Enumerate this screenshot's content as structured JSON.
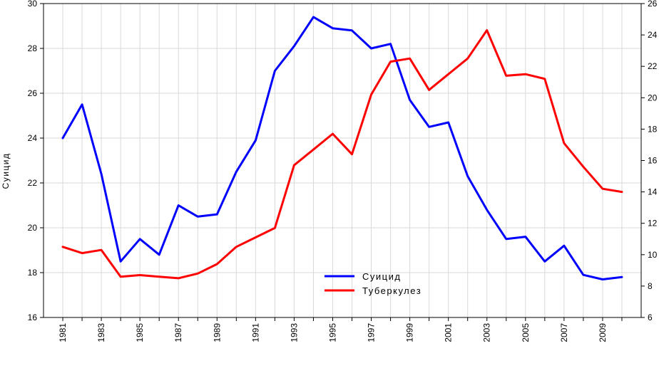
{
  "chart_data": {
    "type": "line",
    "ylabel_left": "Суицид",
    "ylabel_right": "",
    "x": [
      1981,
      1982,
      1983,
      1984,
      1985,
      1986,
      1987,
      1988,
      1989,
      1990,
      1991,
      1992,
      1993,
      1994,
      1995,
      1996,
      1997,
      1998,
      1999,
      2000,
      2001,
      2002,
      2003,
      2004,
      2005,
      2006,
      2007,
      2008,
      2009,
      2010
    ],
    "x_tick_labels": [
      "1981",
      "1983",
      "1985",
      "1987",
      "1989",
      "1991",
      "1993",
      "1995",
      "1997",
      "1999",
      "2001",
      "2003",
      "2005",
      "2007",
      "2009"
    ],
    "ylim_left": [
      16,
      30
    ],
    "yticks_left": [
      "16",
      "18",
      "20",
      "22",
      "24",
      "26",
      "28",
      "30"
    ],
    "ylim_right": [
      6,
      26
    ],
    "yticks_right": [
      "6",
      "8",
      "10",
      "12",
      "14",
      "16",
      "18",
      "20",
      "22",
      "24",
      "26"
    ],
    "grid": true,
    "legend_position": "bottom-center",
    "series": [
      {
        "name": "Суицид",
        "axis": "left",
        "color": "#0000ff",
        "values": [
          24.0,
          25.5,
          22.4,
          18.5,
          19.5,
          18.8,
          21.0,
          20.5,
          20.6,
          22.5,
          23.9,
          27.0,
          28.1,
          29.4,
          28.9,
          28.8,
          28.0,
          28.2,
          25.7,
          24.5,
          24.7,
          22.3,
          20.8,
          19.5,
          19.6,
          18.5,
          19.2,
          17.9,
          17.7,
          17.8
        ]
      },
      {
        "name": "Туберкулез",
        "axis": "right",
        "color": "#ff0000",
        "values": [
          10.5,
          10.1,
          10.3,
          8.6,
          8.7,
          8.6,
          8.5,
          8.8,
          9.4,
          10.5,
          11.1,
          11.7,
          15.7,
          16.7,
          17.7,
          16.4,
          20.2,
          22.3,
          22.5,
          20.5,
          21.5,
          22.5,
          24.3,
          21.4,
          21.5,
          21.2,
          17.1,
          15.6,
          14.2,
          14.0
        ]
      }
    ]
  }
}
